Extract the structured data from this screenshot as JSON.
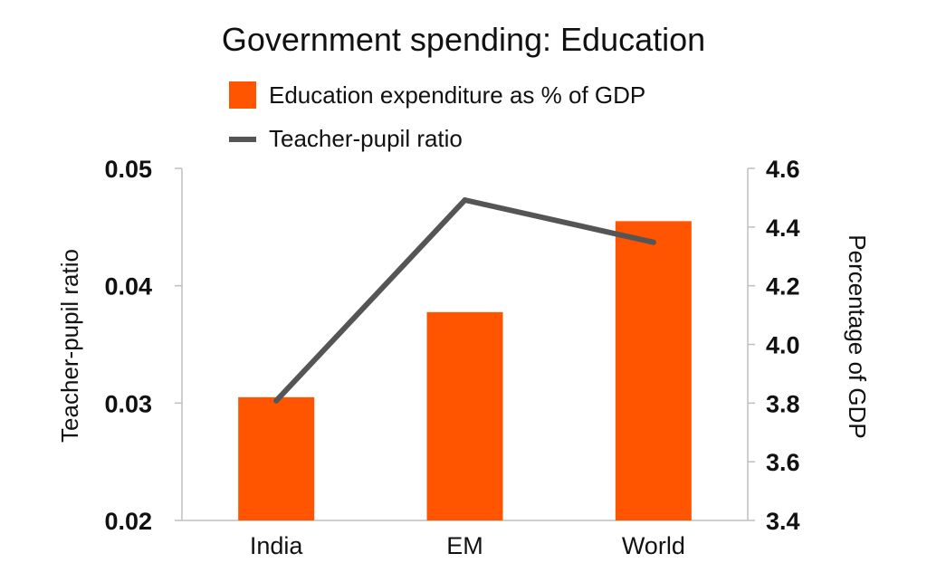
{
  "chart_data": {
    "type": "bar",
    "title": "Government spending: Education",
    "categories": [
      "India",
      "EM",
      "World"
    ],
    "series": [
      {
        "name": "Education expenditure as % of GDP",
        "type": "bar",
        "axis": "right",
        "values": [
          3.82,
          4.11,
          4.42
        ],
        "color": "#ff5500"
      },
      {
        "name": "Teacher-pupil ratio",
        "type": "line",
        "axis": "left",
        "values": [
          0.0302,
          0.0473,
          0.0437
        ],
        "color": "#555555"
      }
    ],
    "y_left": {
      "label": "Teacher-pupil ratio",
      "ylim": [
        0.02,
        0.05
      ],
      "ticks": [
        "0.02",
        "0.03",
        "0.04",
        "0.05"
      ],
      "tick_values": [
        0.02,
        0.03,
        0.04,
        0.05
      ]
    },
    "y_right": {
      "label": "Percentage of GDP",
      "ylim": [
        3.4,
        4.6
      ],
      "ticks": [
        "3.4",
        "3.6",
        "3.8",
        "4.0",
        "4.2",
        "4.4",
        "4.6"
      ],
      "tick_values": [
        3.4,
        3.6,
        3.8,
        4.0,
        4.2,
        4.4,
        4.6
      ]
    },
    "grid": false,
    "legend_position": "top"
  }
}
